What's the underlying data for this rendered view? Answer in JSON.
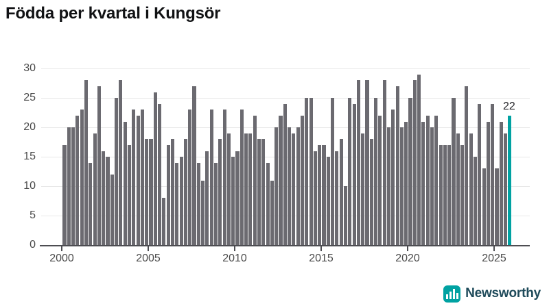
{
  "title": "Födda per kvartal i Kungsör",
  "chart_data": {
    "type": "bar",
    "title": "Födda per kvartal i Kungsör",
    "frequency": "quarterly",
    "x_start": "2000-Q1",
    "x_end": "2025-Q4",
    "values": [
      17,
      20,
      20,
      22,
      23,
      28,
      14,
      19,
      27,
      16,
      15,
      12,
      25,
      28,
      21,
      17,
      23,
      22,
      23,
      18,
      18,
      26,
      24,
      8,
      17,
      18,
      14,
      15,
      18,
      23,
      27,
      14,
      11,
      16,
      23,
      14,
      18,
      23,
      19,
      15,
      16,
      23,
      19,
      19,
      22,
      18,
      18,
      14,
      11,
      20,
      22,
      24,
      20,
      19,
      20,
      22,
      25,
      25,
      16,
      17,
      17,
      15,
      25,
      16,
      18,
      10,
      25,
      24,
      28,
      19,
      28,
      18,
      25,
      22,
      28,
      20,
      23,
      27,
      20,
      21,
      25,
      28,
      29,
      21,
      22,
      20,
      22,
      17,
      17,
      17,
      25,
      19,
      17,
      27,
      19,
      15,
      24,
      13,
      21,
      24,
      13,
      21,
      19,
      22
    ],
    "ylim": [
      0,
      30
    ],
    "y_ticks": [
      0,
      5,
      10,
      15,
      20,
      25,
      30
    ],
    "x_ticks": [
      2000,
      2005,
      2010,
      2015,
      2020,
      2025
    ],
    "grid": "horizontal",
    "legend": "none",
    "bar_color": "#6b6a70",
    "highlight_color": "#00a2a2",
    "highlight_index": 103,
    "annotation": {
      "text": "22",
      "index": 103
    }
  },
  "logo": {
    "text": "Newsworthy",
    "icon": "bar-chart-icon",
    "icon_color": "#00a2a2",
    "text_color": "#1e4a5a"
  }
}
